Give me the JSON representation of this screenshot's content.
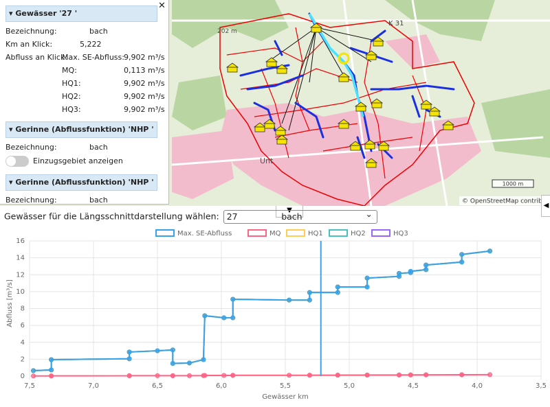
{
  "map": {
    "labels": [
      "K 31",
      "202 m",
      "Unt"
    ],
    "scale": "1000 m",
    "attribution": "© OpenStreetMap contributo"
  },
  "panel": {
    "sections": [
      {
        "title": "Gewässer '27          '",
        "rows": [
          {
            "label": "Bezeichnung:",
            "value": "bach"
          },
          {
            "label": "Km an Klick:",
            "value": "5,222"
          },
          {
            "label": "Abfluss an Klick:",
            "sublabel": "Max. SE-Abfluss:",
            "value": "9,902 m³/s"
          },
          {
            "sublabel": "MQ:",
            "value": "0,113 m³/s"
          },
          {
            "sublabel": "HQ1:",
            "value": "9,902 m³/s"
          },
          {
            "sublabel": "HQ2:",
            "value": "9,902 m³/s"
          },
          {
            "sublabel": "HQ3:",
            "value": "9,902 m³/s"
          }
        ]
      },
      {
        "title": "Gerinne (Abflussfunktion) 'NHP        '",
        "rows": [
          {
            "label": "Bezeichnung:",
            "value": "bach"
          }
        ],
        "toggle": "Einzugsgebiet anzeigen"
      },
      {
        "title": "Gerinne (Abflussfunktion) 'NHP      '",
        "rows": [
          {
            "label": "Bezeichnung:",
            "value": "bach"
          }
        ]
      }
    ]
  },
  "selector": {
    "label": "Gewässer für die Längsschnittdarstellung wählen:",
    "value": "27                bach"
  },
  "chart_data": {
    "type": "line",
    "x_label": "Gewässer km",
    "y_label": "Abfluss [m³/s]",
    "x": [
      7.47,
      7.33,
      7.33,
      6.72,
      6.72,
      6.5,
      6.38,
      6.38,
      6.25,
      6.14,
      6.13,
      5.98,
      5.91,
      5.91,
      5.47,
      5.31,
      5.31,
      5.09,
      5.09,
      4.86,
      4.86,
      4.61,
      4.61,
      4.52,
      4.52,
      4.4,
      4.4,
      4.12,
      4.12,
      3.9
    ],
    "series": [
      {
        "name": "Max. SE-Abfluss",
        "color": "#36a2eb",
        "values": [
          0.65,
          0.73,
          1.95,
          2.05,
          2.85,
          3.0,
          3.1,
          1.5,
          1.55,
          1.95,
          7.15,
          6.9,
          6.9,
          9.1,
          9.0,
          9.0,
          9.9,
          9.9,
          10.55,
          10.55,
          11.6,
          11.8,
          12.15,
          12.25,
          12.4,
          12.6,
          13.15,
          13.5,
          14.4,
          14.8
        ]
      },
      {
        "name": "MQ",
        "color": "#ff6384",
        "values": [
          0.02,
          0.02,
          0.03,
          0.04,
          0.05,
          0.05,
          0.05,
          0.05,
          0.05,
          0.06,
          0.08,
          0.08,
          0.08,
          0.1,
          0.1,
          0.1,
          0.11,
          0.11,
          0.12,
          0.12,
          0.13,
          0.13,
          0.14,
          0.14,
          0.14,
          0.15,
          0.15,
          0.16,
          0.16,
          0.17
        ]
      },
      {
        "name": "HQ1",
        "color": "#ffcd56",
        "values": [
          0.65,
          0.73,
          1.95,
          2.05,
          2.85,
          3.0,
          3.1,
          1.5,
          1.55,
          1.95,
          7.15,
          6.9,
          6.9,
          9.1,
          9.0,
          9.0,
          9.9,
          9.9,
          10.55,
          10.55,
          11.6,
          11.8,
          12.15,
          12.25,
          12.4,
          12.6,
          13.15,
          13.5,
          14.4,
          14.8
        ]
      },
      {
        "name": "HQ2",
        "color": "#4bc0c0",
        "values": [
          0.65,
          0.73,
          1.95,
          2.05,
          2.85,
          3.0,
          3.1,
          1.5,
          1.55,
          1.95,
          7.15,
          6.9,
          6.9,
          9.1,
          9.0,
          9.0,
          9.9,
          9.9,
          10.55,
          10.55,
          11.6,
          11.8,
          12.15,
          12.25,
          12.4,
          12.6,
          13.15,
          13.5,
          14.4,
          14.8
        ]
      },
      {
        "name": "HQ3",
        "color": "#9966ff",
        "values": [
          0.65,
          0.73,
          1.95,
          2.05,
          2.85,
          3.0,
          3.1,
          1.5,
          1.55,
          1.95,
          7.15,
          6.9,
          6.9,
          9.1,
          9.0,
          9.0,
          9.9,
          9.9,
          10.55,
          10.55,
          11.6,
          11.8,
          12.15,
          12.25,
          12.4,
          12.6,
          13.15,
          13.5,
          14.4,
          14.8
        ]
      }
    ],
    "marker_x": 5.222,
    "marker_color": "#36a2eb",
    "xlim": [
      7.5,
      3.5
    ],
    "xticks": [
      {
        "value": 7.5,
        "label": "7,5"
      },
      {
        "value": 7.0,
        "label": "7,0"
      },
      {
        "value": 6.5,
        "label": "6,5"
      },
      {
        "value": 6.0,
        "label": "6,0"
      },
      {
        "value": 5.5,
        "label": "5,5"
      },
      {
        "value": 5.0,
        "label": "5,0"
      },
      {
        "value": 4.5,
        "label": "4,5"
      },
      {
        "value": 4.0,
        "label": "4,0"
      },
      {
        "value": 3.5,
        "label": "3,5"
      }
    ],
    "ylim": [
      0,
      16
    ],
    "yticks": [
      0,
      2,
      4,
      6,
      8,
      10,
      12,
      14,
      16
    ],
    "grid": true,
    "legend": "top"
  }
}
